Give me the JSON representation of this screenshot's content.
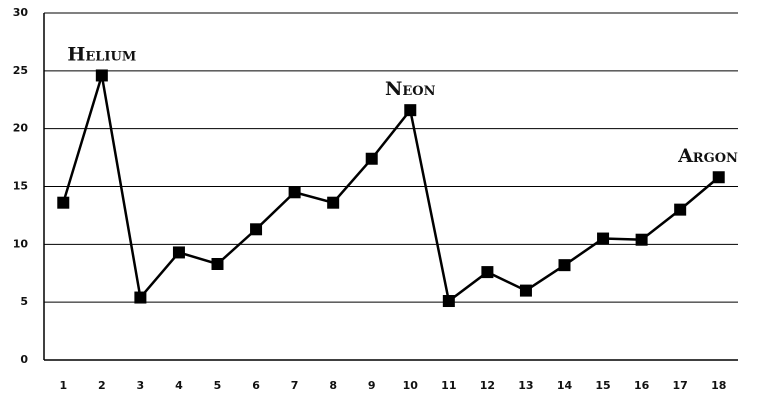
{
  "chart_data": {
    "type": "line",
    "x": [
      1,
      2,
      3,
      4,
      5,
      6,
      7,
      8,
      9,
      10,
      11,
      12,
      13,
      14,
      15,
      16,
      17,
      18
    ],
    "series": [
      {
        "color": "#000000",
        "values": [
          13.6,
          24.6,
          5.4,
          9.3,
          8.3,
          11.3,
          14.5,
          13.6,
          17.4,
          21.6,
          5.1,
          7.6,
          6.0,
          8.2,
          10.5,
          10.4,
          13.0,
          15.8
        ]
      }
    ],
    "xlim": [
      0.5,
      18.5
    ],
    "xticks": [
      1,
      2,
      3,
      4,
      5,
      6,
      7,
      8,
      9,
      10,
      11,
      12,
      13,
      14,
      15,
      16,
      17,
      18
    ],
    "ylim": [
      0,
      30
    ],
    "yticks": [
      0,
      5,
      10,
      15,
      20,
      25,
      30
    ],
    "grid": true,
    "annotations": [
      {
        "text": "Helium",
        "x": 2
      },
      {
        "text": "Neon",
        "x": 10
      },
      {
        "text": "Argon",
        "x": 18
      }
    ]
  }
}
